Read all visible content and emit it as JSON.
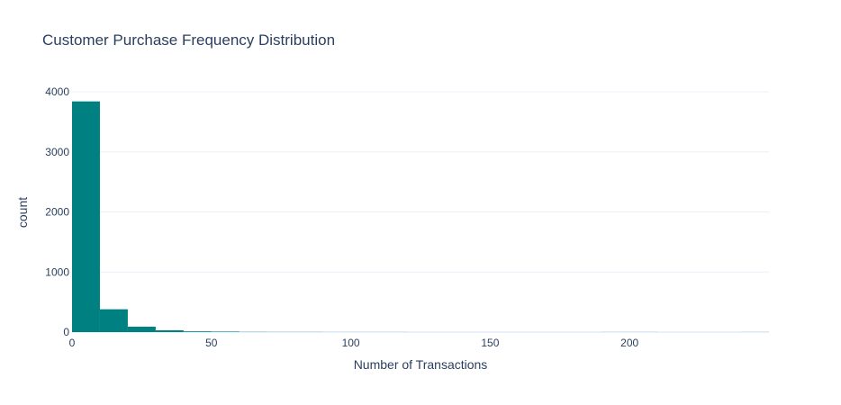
{
  "chart_data": {
    "type": "bar",
    "title": "Customer Purchase Frequency Distribution",
    "xlabel": "Number of Transactions",
    "ylabel": "count",
    "bin_size": 10,
    "bins": [
      {
        "start": 0,
        "end": 10,
        "count": 3840
      },
      {
        "start": 10,
        "end": 20,
        "count": 380
      },
      {
        "start": 20,
        "end": 30,
        "count": 90
      },
      {
        "start": 30,
        "end": 40,
        "count": 30
      },
      {
        "start": 40,
        "end": 50,
        "count": 12
      },
      {
        "start": 50,
        "end": 60,
        "count": 8
      },
      {
        "start": 60,
        "end": 70,
        "count": 3
      },
      {
        "start": 70,
        "end": 80,
        "count": 2
      },
      {
        "start": 80,
        "end": 90,
        "count": 2
      },
      {
        "start": 90,
        "end": 100,
        "count": 1
      },
      {
        "start": 100,
        "end": 110,
        "count": 1
      },
      {
        "start": 110,
        "end": 120,
        "count": 1
      },
      {
        "start": 190,
        "end": 200,
        "count": 1
      },
      {
        "start": 200,
        "end": 210,
        "count": 1
      },
      {
        "start": 240,
        "end": 250,
        "count": 1
      }
    ],
    "xlim": [
      0,
      250
    ],
    "ylim": [
      0,
      4000
    ],
    "x_ticks": [
      0,
      50,
      100,
      150,
      200
    ],
    "y_ticks": [
      0,
      1000,
      2000,
      3000,
      4000
    ],
    "grid": true,
    "bar_color": "#008080"
  }
}
